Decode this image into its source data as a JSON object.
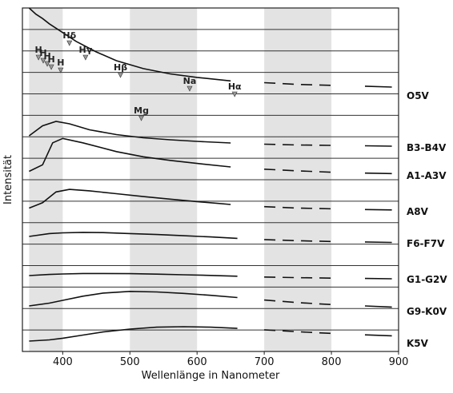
{
  "chart_data": {
    "type": "line",
    "title": "",
    "xlabel": "Wellenlänge in Nanometer",
    "ylabel": "Intensität",
    "xlim": [
      340,
      900
    ],
    "x_ticks": [
      "400",
      "500",
      "600",
      "700",
      "800",
      "900"
    ],
    "x_tick_values": [
      400,
      500,
      600,
      700,
      800,
      900
    ],
    "shaded_bands_nm": [
      [
        350,
        400
      ],
      [
        500,
        600
      ],
      [
        700,
        800
      ]
    ],
    "grid": true,
    "gaps_nm": [
      [
        690,
        840
      ]
    ],
    "series": [
      {
        "name": "O5V",
        "x": [
          350,
          360,
          370,
          380,
          390,
          400,
          420,
          450,
          480,
          520,
          560,
          600,
          650,
          700,
          750,
          800,
          850,
          890
        ],
        "y": [
          1.0,
          0.93,
          0.88,
          0.82,
          0.77,
          0.72,
          0.62,
          0.5,
          0.4,
          0.31,
          0.25,
          0.21,
          0.17,
          0.15,
          0.13,
          0.12,
          0.11,
          0.1
        ]
      },
      {
        "name": "B3-B4V",
        "x": [
          350,
          370,
          390,
          410,
          440,
          480,
          520,
          560,
          600,
          650,
          700,
          750,
          800,
          850,
          890
        ],
        "y": [
          0.3,
          0.55,
          0.66,
          0.6,
          0.45,
          0.33,
          0.25,
          0.2,
          0.16,
          0.12,
          0.09,
          0.07,
          0.06,
          0.05,
          0.04
        ]
      },
      {
        "name": "A1-A3V",
        "x": [
          350,
          370,
          385,
          400,
          430,
          480,
          520,
          560,
          600,
          650,
          700,
          750,
          800,
          850,
          890
        ],
        "y": [
          0.1,
          0.25,
          0.75,
          0.85,
          0.75,
          0.55,
          0.43,
          0.35,
          0.28,
          0.2,
          0.15,
          0.11,
          0.08,
          0.06,
          0.05
        ]
      },
      {
        "name": "A8V",
        "x": [
          350,
          370,
          390,
          410,
          440,
          480,
          520,
          560,
          600,
          650,
          700,
          750,
          800,
          850,
          890
        ],
        "y": [
          0.1,
          0.25,
          0.55,
          0.62,
          0.58,
          0.5,
          0.42,
          0.35,
          0.28,
          0.2,
          0.14,
          0.1,
          0.08,
          0.06,
          0.05
        ]
      },
      {
        "name": "F6-F7V",
        "x": [
          350,
          380,
          400,
          430,
          460,
          500,
          540,
          580,
          620,
          660,
          700,
          750,
          800,
          850,
          890
        ],
        "y": [
          0.3,
          0.42,
          0.45,
          0.47,
          0.46,
          0.42,
          0.38,
          0.33,
          0.28,
          0.22,
          0.17,
          0.12,
          0.09,
          0.07,
          0.05
        ]
      },
      {
        "name": "G1-G2V",
        "x": [
          350,
          380,
          400,
          430,
          460,
          500,
          540,
          580,
          620,
          660,
          700,
          750,
          800,
          850,
          890
        ],
        "y": [
          0.25,
          0.32,
          0.35,
          0.38,
          0.38,
          0.37,
          0.34,
          0.3,
          0.26,
          0.21,
          0.16,
          0.12,
          0.09,
          0.07,
          0.05
        ]
      },
      {
        "name": "G9-K0V",
        "x": [
          350,
          380,
          400,
          430,
          460,
          500,
          540,
          580,
          620,
          660,
          700,
          750,
          800,
          850,
          890
        ],
        "y": [
          0.2,
          0.3,
          0.4,
          0.55,
          0.66,
          0.72,
          0.7,
          0.65,
          0.58,
          0.5,
          0.41,
          0.32,
          0.25,
          0.2,
          0.16
        ]
      },
      {
        "name": "K5V",
        "x": [
          350,
          380,
          400,
          430,
          460,
          500,
          540,
          580,
          620,
          660,
          700,
          750,
          800,
          850,
          890
        ],
        "y": [
          0.1,
          0.15,
          0.22,
          0.35,
          0.48,
          0.6,
          0.68,
          0.7,
          0.68,
          0.63,
          0.57,
          0.49,
          0.42,
          0.36,
          0.32
        ]
      }
    ],
    "annotations": [
      {
        "text": "Hδ",
        "x": 410
      },
      {
        "text": "Hγ",
        "x": 434
      },
      {
        "text": "Hβ",
        "x": 486
      },
      {
        "text": "Na",
        "x": 589
      },
      {
        "text": "Hα",
        "x": 656
      },
      {
        "text": "Mg",
        "x": 517
      },
      {
        "text": "H",
        "x": 364
      },
      {
        "text": "H",
        "x": 371
      },
      {
        "text": "H",
        "x": 377
      },
      {
        "text": "H",
        "x": 383
      },
      {
        "text": "H",
        "x": 397
      }
    ]
  }
}
